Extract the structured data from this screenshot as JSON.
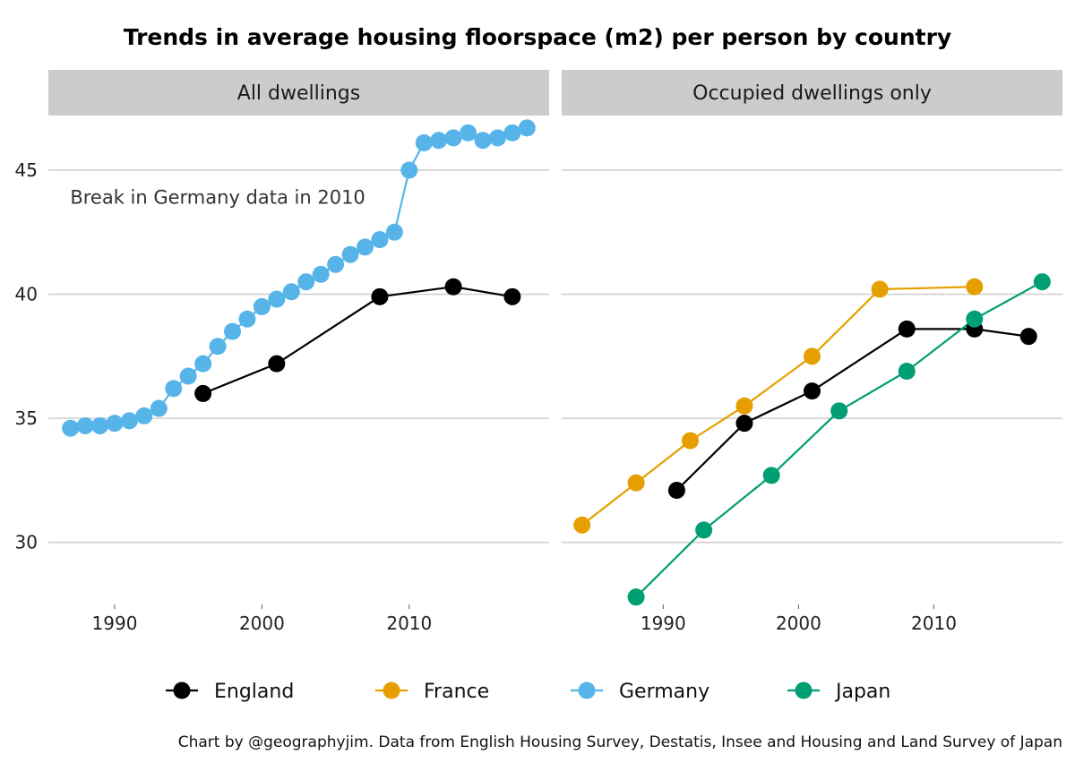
{
  "chart_data": {
    "type": "line",
    "title": "Trends in average housing floorspace (m2) per person by country",
    "caption": "Chart by @geographyjim. Data from English Housing Survey, Destatis, Insee and Housing and Land Survey of Japan",
    "ylim": [
      27.5,
      47.2
    ],
    "yticks": [
      30,
      35,
      40,
      45
    ],
    "xticks": [
      1990,
      2000,
      2010
    ],
    "grid": true,
    "legend_position": "bottom",
    "legend": [
      "England",
      "France",
      "Germany",
      "Japan"
    ],
    "colors": {
      "England": "#000000",
      "France": "#E69F00",
      "Germany": "#56B4E9",
      "Japan": "#009E73"
    },
    "panels": [
      {
        "strip": "All dwellings",
        "xlim": [
          1985.5,
          2019.5
        ],
        "annotation": {
          "text": "Break in Germany data in 2010",
          "x": 1997,
          "y": 43.9
        },
        "series": [
          {
            "name": "Germany",
            "x": [
              1987,
              1988,
              1989,
              1990,
              1991,
              1992,
              1993,
              1994,
              1995,
              1996,
              1997,
              1998,
              1999,
              2000,
              2001,
              2002,
              2003,
              2004,
              2005,
              2006,
              2007,
              2008,
              2009,
              2010,
              2011,
              2012,
              2013,
              2014,
              2015,
              2016,
              2017,
              2018
            ],
            "y": [
              34.6,
              34.7,
              34.7,
              34.8,
              34.9,
              35.1,
              35.4,
              36.2,
              36.7,
              37.2,
              37.9,
              38.5,
              39.0,
              39.5,
              39.8,
              40.1,
              40.5,
              40.8,
              41.2,
              41.6,
              41.9,
              42.2,
              42.5,
              45.0,
              46.1,
              46.2,
              46.3,
              46.5,
              46.2,
              46.3,
              46.5,
              46.7
            ]
          },
          {
            "name": "England",
            "x": [
              1996,
              2001,
              2008,
              2013,
              2017
            ],
            "y": [
              36.0,
              37.2,
              39.9,
              40.3,
              39.9
            ]
          }
        ]
      },
      {
        "strip": "Occupied dwellings only",
        "xlim": [
          1982.5,
          2019.5
        ],
        "series": [
          {
            "name": "France",
            "x": [
              1984,
              1988,
              1992,
              1996,
              2001,
              2006,
              2013
            ],
            "y": [
              30.7,
              32.4,
              34.1,
              35.5,
              37.5,
              40.2,
              40.3
            ]
          },
          {
            "name": "England",
            "x": [
              1991,
              1996,
              2001,
              2008,
              2013,
              2017
            ],
            "y": [
              32.1,
              34.8,
              36.1,
              38.6,
              38.6,
              38.3
            ]
          },
          {
            "name": "Japan",
            "x": [
              1988,
              1993,
              1998,
              2003,
              2008,
              2013,
              2018
            ],
            "y": [
              27.8,
              30.5,
              32.7,
              35.3,
              36.9,
              39.0,
              40.5
            ]
          }
        ]
      }
    ]
  }
}
